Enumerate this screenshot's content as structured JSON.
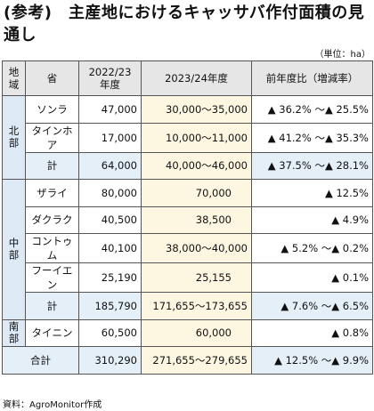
{
  "header": {
    "title": "(参考)　主産地におけるキャッサバ作付面積の見通し",
    "unit": "（単位：ha）"
  },
  "table": {
    "columns": [
      "地域",
      "省",
      "2022/23\n年度",
      "2023/24年度",
      "前年度比（増減率）"
    ],
    "regions": [
      {
        "name": "北部",
        "rows": [
          {
            "province": "ソンラ",
            "y2022": "47,000",
            "y2023": "30,000～35,000",
            "change": "▲ 36.2% ～▲ 25.5%"
          },
          {
            "province": "タインホア",
            "y2022": "17,000",
            "y2023": "10,000～11,000",
            "change": "▲ 41.2% ～▲ 35.3%"
          },
          {
            "province": "計",
            "y2022": "64,000",
            "y2023": "40,000～46,000",
            "change": "▲ 37.5% ～▲ 28.1%"
          }
        ]
      },
      {
        "name": "中部",
        "rows": [
          {
            "province": "ザライ",
            "y2022": "80,000",
            "y2023": "70,000",
            "change": "▲ 12.5%"
          },
          {
            "province": "ダクラク",
            "y2022": "40,500",
            "y2023": "38,500",
            "change": "▲ 4.9%"
          },
          {
            "province": "コントゥム",
            "y2022": "40,100",
            "y2023": "38,000～40,000",
            "change": "▲ 5.2% ～▲ 0.2%"
          },
          {
            "province": "フーイエン",
            "y2022": "25,190",
            "y2023": "25,155",
            "change": "▲ 0.1%"
          },
          {
            "province": "計",
            "y2022": "185,790",
            "y2023": "171,655～173,655",
            "change": "▲ 7.6% ～▲ 6.5%"
          }
        ]
      },
      {
        "name": "南部",
        "rows": [
          {
            "province": "タイニン",
            "y2022": "60,500",
            "y2023": "60,000",
            "change": "▲ 0.8%"
          }
        ]
      }
    ],
    "total": {
      "label": "合計",
      "y2022": "310,290",
      "y2023": "271,655～279,655",
      "change": "▲ 12.5% ～▲ 9.9%"
    }
  },
  "footer": {
    "source": "資料：AgroMonitor作成"
  }
}
